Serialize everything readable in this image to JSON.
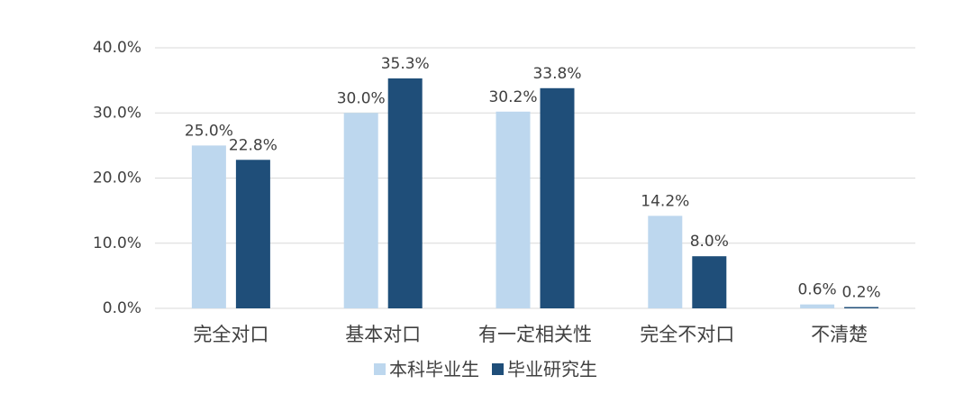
{
  "chart_data": {
    "type": "bar",
    "categories": [
      "完全对口",
      "基本对口",
      "有一定相关性",
      "完全不对口",
      "不清楚"
    ],
    "series": [
      {
        "name": "本科毕业生",
        "color": "#bdd7ee",
        "values": [
          25.0,
          30.0,
          30.2,
          14.2,
          0.6
        ],
        "value_labels": [
          "25.0%",
          "30.0%",
          "30.2%",
          "14.2%",
          "0.6%"
        ]
      },
      {
        "name": "毕业研究生",
        "color": "#1f4e79",
        "values": [
          22.8,
          35.3,
          33.8,
          8.0,
          0.2
        ],
        "value_labels": [
          "22.8%",
          "35.3%",
          "33.8%",
          "8.0%",
          "0.2%"
        ]
      }
    ],
    "ylim": [
      0,
      40
    ],
    "yticks": [
      {
        "value": 0,
        "label": "0.0%"
      },
      {
        "value": 10,
        "label": "10.0%"
      },
      {
        "value": 20,
        "label": "20.0%"
      },
      {
        "value": 30,
        "label": "30.0%"
      },
      {
        "value": 40,
        "label": "40.0%"
      }
    ],
    "grid": true,
    "legend": "bottom"
  }
}
